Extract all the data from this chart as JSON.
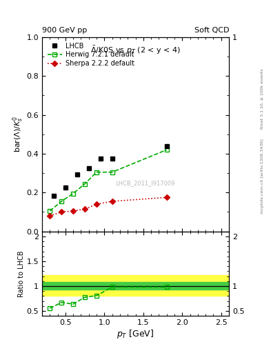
{
  "title_main": "$\\bar{\\Lambda}$/K0S vs $p_T$ (2 < y < 4)",
  "top_left_label": "900 GeV pp",
  "top_right_label": "Soft QCD",
  "ylabel_main": "bar($\\Lambda$)/$K^0_s$",
  "ylabel_ratio": "Ratio to LHCB",
  "xlabel": "$p_T$ [GeV]",
  "right_label_top": "Rivet 3.1.10, ≥ 100k events",
  "right_label_bottom": "mcplots.cern.ch [arXiv:1306.3436]",
  "watermark": "LHCB_2011_I917009",
  "xlim": [
    0.2,
    2.6
  ],
  "ylim_main": [
    0.0,
    1.0
  ],
  "ylim_ratio": [
    0.4,
    2.1
  ],
  "lhcb_x": [
    0.35,
    0.5,
    0.65,
    0.8,
    0.95,
    1.1,
    1.8
  ],
  "lhcb_y": [
    0.185,
    0.225,
    0.295,
    0.325,
    0.375,
    0.375,
    0.44
  ],
  "herwig_x": [
    0.3,
    0.45,
    0.6,
    0.75,
    0.9,
    1.1,
    1.8
  ],
  "herwig_y": [
    0.105,
    0.155,
    0.195,
    0.245,
    0.305,
    0.305,
    0.42
  ],
  "sherpa_x": [
    0.3,
    0.45,
    0.6,
    0.75,
    0.9,
    1.1,
    1.8
  ],
  "sherpa_y": [
    0.08,
    0.1,
    0.105,
    0.115,
    0.14,
    0.155,
    0.175
  ],
  "herwig_ratio_x": [
    0.3,
    0.45,
    0.6,
    0.75,
    0.9,
    1.1,
    1.8
  ],
  "herwig_ratio_y": [
    0.555,
    0.67,
    0.64,
    0.775,
    0.81,
    0.98,
    0.98
  ],
  "band_yellow_lo": 0.8,
  "band_yellow_hi": 1.22,
  "band_green_lo": 0.93,
  "band_green_hi": 1.08,
  "lhcb_color": "#000000",
  "herwig_color": "#00aa00",
  "sherpa_color": "#cc0000",
  "band_yellow_color": "#ffff44",
  "band_green_color": "#44cc44",
  "legend_labels": [
    "LHCB",
    "Herwig 7.2.1 default",
    "Sherpa 2.2.2 default"
  ]
}
